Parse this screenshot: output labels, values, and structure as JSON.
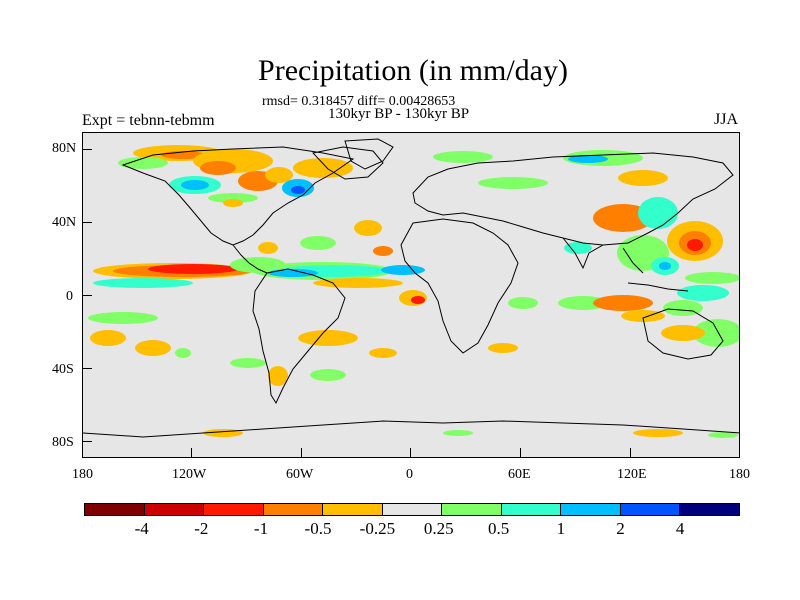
{
  "title": "Precipitation (in mm/day)",
  "stats": "rmsd= 0.318457 diff= 0.00428653",
  "period": "130kyr BP - 130kyr BP",
  "experiment": "Expt = tebnn-tebmm",
  "season": "JJA",
  "y_ticks": [
    "80N",
    "40N",
    "0",
    "40S",
    "80S"
  ],
  "x_ticks": [
    "180",
    "120W",
    "60W",
    "0",
    "60E",
    "120E",
    "180"
  ],
  "colorbar": {
    "colors": [
      "#7f0000",
      "#cc0000",
      "#ff1a00",
      "#ff7f00",
      "#ffbf00",
      "#e6e6e6",
      "#80ff66",
      "#33ffcc",
      "#00bfff",
      "#0055ff",
      "#00007f"
    ],
    "labels": [
      "-4",
      "-2",
      "-1",
      "-0.5",
      "-0.25",
      "0.25",
      "0.5",
      "1",
      "2",
      "4"
    ]
  },
  "map": {
    "lon_range": [
      -180,
      180
    ],
    "lat_range": [
      -90,
      90
    ]
  }
}
